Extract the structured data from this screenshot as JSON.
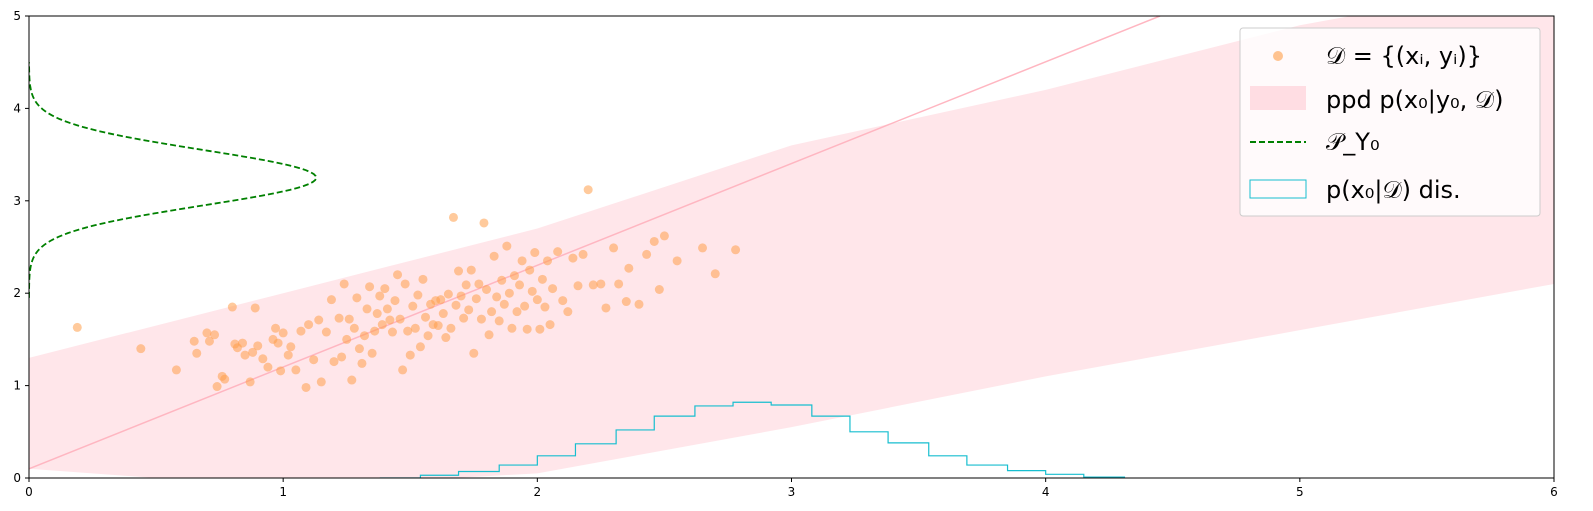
{
  "chart_data": {
    "type": "scatter",
    "xlim": [
      0,
      6
    ],
    "ylim": [
      0,
      5
    ],
    "x_ticks": [
      0,
      1,
      2,
      3,
      4,
      5,
      6
    ],
    "y_ticks": [
      0,
      1,
      2,
      3,
      4,
      5
    ],
    "grid": false,
    "legend_placement": "top-right",
    "colors": {
      "scatter": "#ff9f4a",
      "band": "#ffc0cb",
      "mean_line": "#ffb6c1",
      "density": "#008000",
      "histogram": "#17becf"
    },
    "legend": [
      {
        "kind": "scatter",
        "text": "𝒟 = {(xᵢ, yᵢ)}"
      },
      {
        "kind": "band",
        "text": "ppd p(x₀|y₀, 𝒟)"
      },
      {
        "kind": "dashed",
        "text": "𝒫_Y₀"
      },
      {
        "kind": "hist",
        "text": "p(x₀|𝒟) dis."
      }
    ],
    "ppd_band": {
      "x": [
        0.0,
        1.0,
        2.0,
        3.0,
        4.0,
        5.0,
        6.0
      ],
      "lower": [
        0.1,
        -0.1,
        0.05,
        0.55,
        1.1,
        1.6,
        2.1
      ],
      "upper": [
        1.3,
        2.0,
        2.7,
        3.6,
        4.2,
        4.9,
        5.4
      ]
    },
    "mean_line": {
      "x": [
        0.0,
        4.45
      ],
      "y": [
        0.1,
        5.0
      ]
    },
    "density": {
      "mode_y": 3.25,
      "sigma": 0.3,
      "peak_x": 1.13,
      "y_range": [
        1.95,
        4.5
      ]
    },
    "histogram": {
      "edges": [
        1.38,
        1.54,
        1.69,
        1.85,
        2.0,
        2.15,
        2.31,
        2.46,
        2.62,
        2.77,
        2.92,
        3.08,
        3.23,
        3.38,
        3.54,
        3.69,
        3.85,
        4.0,
        4.15,
        4.31
      ],
      "heights": [
        0.0,
        0.03,
        0.07,
        0.14,
        0.24,
        0.37,
        0.52,
        0.67,
        0.78,
        0.82,
        0.79,
        0.67,
        0.5,
        0.38,
        0.24,
        0.14,
        0.08,
        0.04,
        0.01
      ]
    },
    "points": [
      [
        0.19,
        1.63
      ],
      [
        0.44,
        1.4
      ],
      [
        0.58,
        1.17
      ],
      [
        0.65,
        1.48
      ],
      [
        0.66,
        1.35
      ],
      [
        0.7,
        1.57
      ],
      [
        0.71,
        1.48
      ],
      [
        0.73,
        1.55
      ],
      [
        0.74,
        0.99
      ],
      [
        0.76,
        1.1
      ],
      [
        0.77,
        1.07
      ],
      [
        0.8,
        1.85
      ],
      [
        0.81,
        1.45
      ],
      [
        0.82,
        1.41
      ],
      [
        0.84,
        1.46
      ],
      [
        0.85,
        1.33
      ],
      [
        0.87,
        1.04
      ],
      [
        0.88,
        1.36
      ],
      [
        0.89,
        1.84
      ],
      [
        0.9,
        1.43
      ],
      [
        0.92,
        1.29
      ],
      [
        0.94,
        1.2
      ],
      [
        0.96,
        1.5
      ],
      [
        0.97,
        1.62
      ],
      [
        0.98,
        1.46
      ],
      [
        0.99,
        1.16
      ],
      [
        1.0,
        1.57
      ],
      [
        1.02,
        1.33
      ],
      [
        1.03,
        1.42
      ],
      [
        1.05,
        1.17
      ],
      [
        1.07,
        1.59
      ],
      [
        1.09,
        0.98
      ],
      [
        1.1,
        1.66
      ],
      [
        1.12,
        1.28
      ],
      [
        1.14,
        1.71
      ],
      [
        1.15,
        1.04
      ],
      [
        1.17,
        1.58
      ],
      [
        1.19,
        1.93
      ],
      [
        1.2,
        1.26
      ],
      [
        1.22,
        1.73
      ],
      [
        1.23,
        1.31
      ],
      [
        1.24,
        2.1
      ],
      [
        1.25,
        1.5
      ],
      [
        1.26,
        1.72
      ],
      [
        1.27,
        1.06
      ],
      [
        1.28,
        1.62
      ],
      [
        1.29,
        1.95
      ],
      [
        1.3,
        1.4
      ],
      [
        1.31,
        1.24
      ],
      [
        1.32,
        1.54
      ],
      [
        1.33,
        1.83
      ],
      [
        1.34,
        2.07
      ],
      [
        1.35,
        1.35
      ],
      [
        1.36,
        1.59
      ],
      [
        1.37,
        1.78
      ],
      [
        1.38,
        1.97
      ],
      [
        1.39,
        1.66
      ],
      [
        1.4,
        2.05
      ],
      [
        1.41,
        1.83
      ],
      [
        1.42,
        1.71
      ],
      [
        1.43,
        1.58
      ],
      [
        1.44,
        1.92
      ],
      [
        1.45,
        2.2
      ],
      [
        1.46,
        1.72
      ],
      [
        1.47,
        1.17
      ],
      [
        1.48,
        2.1
      ],
      [
        1.49,
        1.59
      ],
      [
        1.5,
        1.33
      ],
      [
        1.51,
        1.86
      ],
      [
        1.52,
        1.62
      ],
      [
        1.53,
        1.98
      ],
      [
        1.54,
        1.42
      ],
      [
        1.55,
        2.15
      ],
      [
        1.56,
        1.74
      ],
      [
        1.57,
        1.54
      ],
      [
        1.58,
        1.88
      ],
      [
        1.59,
        1.66
      ],
      [
        1.6,
        1.92
      ],
      [
        1.61,
        1.65
      ],
      [
        1.62,
        1.93
      ],
      [
        1.63,
        1.78
      ],
      [
        1.64,
        1.52
      ],
      [
        1.65,
        1.99
      ],
      [
        1.66,
        1.62
      ],
      [
        1.67,
        2.82
      ],
      [
        1.68,
        1.87
      ],
      [
        1.69,
        2.24
      ],
      [
        1.7,
        1.97
      ],
      [
        1.71,
        1.73
      ],
      [
        1.72,
        2.09
      ],
      [
        1.73,
        1.82
      ],
      [
        1.74,
        2.25
      ],
      [
        1.75,
        1.35
      ],
      [
        1.76,
        1.94
      ],
      [
        1.77,
        2.1
      ],
      [
        1.78,
        1.72
      ],
      [
        1.79,
        2.76
      ],
      [
        1.8,
        2.04
      ],
      [
        1.81,
        1.55
      ],
      [
        1.82,
        1.8
      ],
      [
        1.83,
        2.4
      ],
      [
        1.84,
        1.96
      ],
      [
        1.85,
        1.7
      ],
      [
        1.86,
        2.14
      ],
      [
        1.87,
        1.88
      ],
      [
        1.88,
        2.51
      ],
      [
        1.89,
        2.0
      ],
      [
        1.9,
        1.62
      ],
      [
        1.91,
        2.19
      ],
      [
        1.92,
        1.8
      ],
      [
        1.93,
        2.09
      ],
      [
        1.94,
        2.35
      ],
      [
        1.95,
        1.86
      ],
      [
        1.96,
        1.61
      ],
      [
        1.97,
        2.25
      ],
      [
        1.98,
        2.02
      ],
      [
        1.99,
        2.44
      ],
      [
        2.0,
        1.93
      ],
      [
        2.01,
        1.61
      ],
      [
        2.02,
        2.15
      ],
      [
        2.03,
        1.85
      ],
      [
        2.04,
        2.35
      ],
      [
        2.05,
        1.66
      ],
      [
        2.06,
        2.05
      ],
      [
        2.08,
        2.45
      ],
      [
        2.1,
        1.92
      ],
      [
        2.12,
        1.8
      ],
      [
        2.14,
        2.38
      ],
      [
        2.16,
        2.08
      ],
      [
        2.18,
        2.42
      ],
      [
        2.2,
        3.12
      ],
      [
        2.22,
        2.09
      ],
      [
        2.25,
        2.1
      ],
      [
        2.27,
        1.84
      ],
      [
        2.3,
        2.49
      ],
      [
        2.32,
        2.1
      ],
      [
        2.35,
        1.91
      ],
      [
        2.36,
        2.27
      ],
      [
        2.4,
        1.88
      ],
      [
        2.43,
        2.42
      ],
      [
        2.46,
        2.56
      ],
      [
        2.48,
        2.04
      ],
      [
        2.5,
        2.62
      ],
      [
        2.55,
        2.35
      ],
      [
        2.65,
        2.49
      ],
      [
        2.7,
        2.21
      ],
      [
        2.78,
        2.47
      ]
    ]
  }
}
